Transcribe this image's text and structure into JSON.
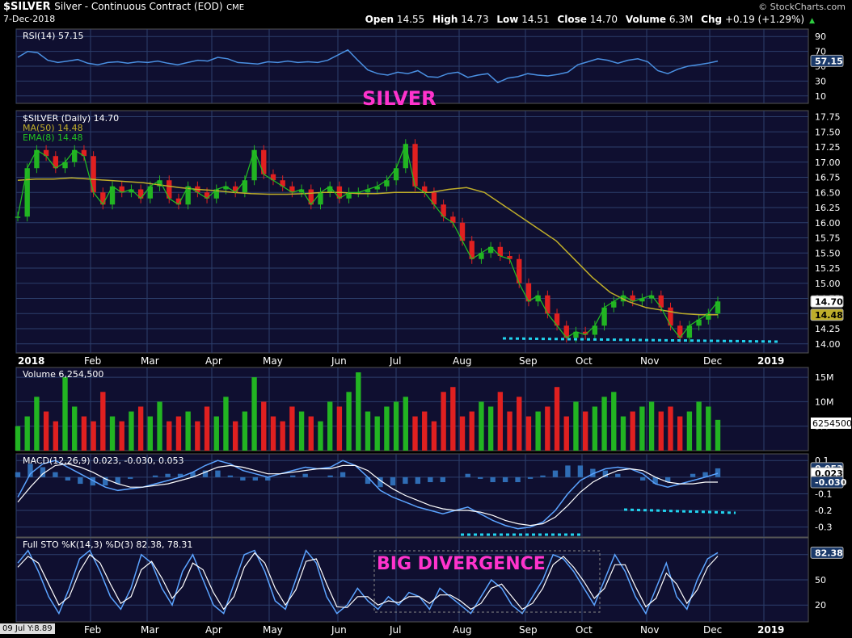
{
  "header": {
    "symbol": "$SILVER",
    "name": "Silver - Continuous Contract (EOD)",
    "exchange": "CME",
    "date": "7-Dec-2018",
    "brand": "© StockCharts.com",
    "open_label": "Open",
    "open": "14.55",
    "high_label": "High",
    "high": "14.73",
    "low_label": "Low",
    "low": "14.51",
    "close_label": "Close",
    "close": "14.70",
    "volume_label": "Volume",
    "volume": "6.3M",
    "chg_label": "Chg",
    "chg": "+0.19 (+1.29%)"
  },
  "annotations": {
    "silver_title": "SILVER",
    "big_divergence": "BIG DIVERGENCE",
    "footer_badge": "09 Jul Y:8.89"
  },
  "colors": {
    "background": "#000000",
    "panel": "#0d0d2b",
    "grid": "#2c3f6b",
    "up": "#22b422",
    "down": "#e02020",
    "ma50": "#bfae2a",
    "ema8": "#22c022",
    "rsi": "#4a90e2",
    "accent_magenta": "#ff33cc",
    "accent_cyan": "#22d3ee"
  },
  "chart_data": [
    {
      "type": "line",
      "panel": "rsi",
      "legend": "RSI(14) 57.15",
      "y_ticks": [
        "90",
        "70",
        "50",
        "30",
        "10"
      ],
      "ylim": [
        0,
        100
      ],
      "last_value_label": "57.15",
      "series": [
        {
          "name": "RSI(14)",
          "values": [
            62,
            70,
            68,
            58,
            55,
            57,
            59,
            54,
            52,
            55,
            56,
            54,
            56,
            55,
            57,
            54,
            52,
            55,
            58,
            57,
            62,
            60,
            55,
            54,
            53,
            56,
            55,
            57,
            55,
            56,
            55,
            58,
            65,
            72,
            58,
            45,
            40,
            38,
            42,
            40,
            44,
            36,
            35,
            40,
            42,
            35,
            38,
            40,
            28,
            34,
            36,
            40,
            38,
            37,
            39,
            42,
            52,
            56,
            60,
            58,
            54,
            58,
            60,
            56,
            44,
            40,
            46,
            50,
            52,
            54,
            57
          ]
        }
      ]
    },
    {
      "type": "line",
      "panel": "price",
      "legend": [
        "$SILVER (Daily) 14.70",
        "MA(50) 14.48",
        "EMA(8) 14.48"
      ],
      "y_ticks": [
        "17.75",
        "17.50",
        "17.25",
        "17.00",
        "16.75",
        "16.50",
        "16.25",
        "16.00",
        "15.75",
        "15.50",
        "15.25",
        "15.00",
        "14.75",
        "14.50",
        "14.25",
        "14.00"
      ],
      "ylim": [
        13.85,
        17.85
      ],
      "last_value_label": "14.70",
      "ma_value_label": "14.48",
      "x_ticks": [
        "2018",
        "Feb",
        "Mar",
        "Apr",
        "May",
        "Jun",
        "Jul",
        "Aug",
        "Sep",
        "Oct",
        "Nov",
        "Dec",
        "2019"
      ],
      "series": [
        {
          "name": "$SILVER",
          "values": [
            16.1,
            16.9,
            17.2,
            17.1,
            16.9,
            17.0,
            17.2,
            17.1,
            16.5,
            16.3,
            16.6,
            16.5,
            16.55,
            16.4,
            16.6,
            16.7,
            16.4,
            16.3,
            16.6,
            16.5,
            16.4,
            16.55,
            16.6,
            16.5,
            16.7,
            17.2,
            16.8,
            16.7,
            16.6,
            16.5,
            16.55,
            16.3,
            16.5,
            16.6,
            16.4,
            16.5,
            16.5,
            16.55,
            16.6,
            16.7,
            16.9,
            17.3,
            16.6,
            16.5,
            16.3,
            16.1,
            16.0,
            15.7,
            15.4,
            15.5,
            15.6,
            15.45,
            15.4,
            15.0,
            14.7,
            14.8,
            14.5,
            14.3,
            14.1,
            14.2,
            14.15,
            14.3,
            14.6,
            14.7,
            14.8,
            14.7,
            14.75,
            14.8,
            14.6,
            14.3,
            14.1,
            14.3,
            14.4,
            14.5,
            14.7
          ]
        },
        {
          "name": "MA(50)",
          "values": [
            16.7,
            16.72,
            16.72,
            16.74,
            16.72,
            16.7,
            16.68,
            16.66,
            16.62,
            16.58,
            16.55,
            16.53,
            16.5,
            16.48,
            16.47,
            16.47,
            16.48,
            16.5,
            16.5,
            16.48,
            16.48,
            16.5,
            16.5,
            16.5,
            16.55,
            16.58,
            16.5,
            16.3,
            16.1,
            15.9,
            15.7,
            15.4,
            15.1,
            14.85,
            14.7,
            14.6,
            14.55,
            14.5,
            14.48,
            14.48
          ]
        }
      ]
    },
    {
      "type": "bar",
      "panel": "volume",
      "legend": "Volume 6,254,500",
      "y_ticks": [
        "15M",
        "10M",
        "5M"
      ],
      "ylim": [
        0,
        17000000
      ],
      "last_value_label": "6254500",
      "series": [
        {
          "name": "Volume",
          "values": [
            5,
            7,
            11,
            8,
            6,
            15,
            9,
            7,
            6,
            12,
            7,
            6,
            8,
            9,
            7,
            10,
            6,
            7,
            8,
            6,
            9,
            7,
            11,
            6,
            8,
            15,
            10,
            7,
            6,
            9,
            8,
            7,
            6,
            10,
            9,
            12,
            16,
            8,
            7,
            9,
            10,
            11,
            7,
            8,
            6,
            12,
            13,
            7,
            8,
            10,
            9,
            12,
            8,
            11,
            7,
            8,
            9,
            13,
            7,
            10,
            8,
            9,
            11,
            12,
            7,
            8,
            9,
            10,
            8,
            9,
            7,
            8,
            10,
            9,
            6.3
          ]
        }
      ]
    },
    {
      "type": "line",
      "panel": "macd",
      "legend": "MACD(12,26,9) 0.023, -0.030, 0.053",
      "y_ticks": [
        "0.1",
        "-0.0",
        "-0.1",
        "-0.2",
        "-0.3"
      ],
      "ylim": [
        -0.36,
        0.14
      ],
      "last_value_labels": [
        "0.053",
        "0.023",
        "-0.030"
      ],
      "series": [
        {
          "name": "MACD",
          "values": [
            -0.12,
            0.02,
            0.08,
            0.1,
            0.06,
            0.02,
            -0.02,
            -0.06,
            -0.08,
            -0.07,
            -0.06,
            -0.04,
            -0.02,
            0.0,
            0.03,
            0.07,
            0.1,
            0.08,
            0.04,
            0.02,
            0.0,
            0.02,
            0.04,
            0.06,
            0.05,
            0.06,
            0.1,
            0.07,
            0.0,
            -0.08,
            -0.12,
            -0.15,
            -0.18,
            -0.2,
            -0.22,
            -0.2,
            -0.18,
            -0.22,
            -0.26,
            -0.29,
            -0.31,
            -0.3,
            -0.27,
            -0.2,
            -0.1,
            -0.02,
            0.02,
            0.05,
            0.06,
            0.05,
            0.02,
            -0.04,
            -0.06,
            -0.04,
            -0.02,
            0.0,
            0.023
          ]
        },
        {
          "name": "Signal",
          "values": [
            -0.15,
            -0.06,
            0.02,
            0.07,
            0.08,
            0.06,
            0.03,
            -0.01,
            -0.04,
            -0.06,
            -0.06,
            -0.05,
            -0.04,
            -0.02,
            0.0,
            0.03,
            0.06,
            0.07,
            0.06,
            0.04,
            0.02,
            0.02,
            0.03,
            0.04,
            0.05,
            0.05,
            0.07,
            0.07,
            0.04,
            -0.02,
            -0.07,
            -0.11,
            -0.14,
            -0.17,
            -0.19,
            -0.2,
            -0.2,
            -0.21,
            -0.23,
            -0.26,
            -0.28,
            -0.29,
            -0.28,
            -0.24,
            -0.17,
            -0.09,
            -0.03,
            0.01,
            0.04,
            0.05,
            0.04,
            0.0,
            -0.03,
            -0.04,
            -0.04,
            -0.03,
            -0.03
          ]
        }
      ]
    },
    {
      "type": "line",
      "panel": "stochastic",
      "legend": "Full STO %K(14,3) %D(3) 82.38, 78.31",
      "y_ticks": [
        "80",
        "50",
        "20"
      ],
      "ylim": [
        0,
        100
      ],
      "last_value_label": "82.38",
      "series": [
        {
          "name": "%K",
          "values": [
            70,
            85,
            60,
            30,
            10,
            40,
            75,
            85,
            60,
            30,
            15,
            40,
            80,
            70,
            40,
            20,
            60,
            80,
            50,
            20,
            10,
            45,
            80,
            85,
            60,
            25,
            15,
            50,
            85,
            70,
            30,
            10,
            20,
            40,
            25,
            15,
            30,
            20,
            35,
            30,
            15,
            40,
            30,
            20,
            10,
            30,
            50,
            40,
            20,
            10,
            30,
            50,
            80,
            75,
            60,
            40,
            20,
            50,
            80,
            60,
            30,
            10,
            40,
            70,
            30,
            15,
            50,
            75,
            82.38
          ]
        },
        {
          "name": "%D",
          "values": [
            65,
            78,
            70,
            45,
            20,
            30,
            60,
            80,
            70,
            45,
            22,
            30,
            62,
            72,
            52,
            28,
            42,
            70,
            62,
            35,
            15,
            30,
            65,
            82,
            70,
            40,
            20,
            38,
            72,
            75,
            45,
            18,
            17,
            30,
            30,
            20,
            25,
            23,
            30,
            30,
            22,
            32,
            32,
            25,
            15,
            22,
            40,
            45,
            30,
            15,
            22,
            40,
            68,
            78,
            65,
            48,
            28,
            40,
            68,
            68,
            42,
            18,
            28,
            58,
            45,
            22,
            38,
            65,
            78.31
          ]
        }
      ]
    }
  ]
}
